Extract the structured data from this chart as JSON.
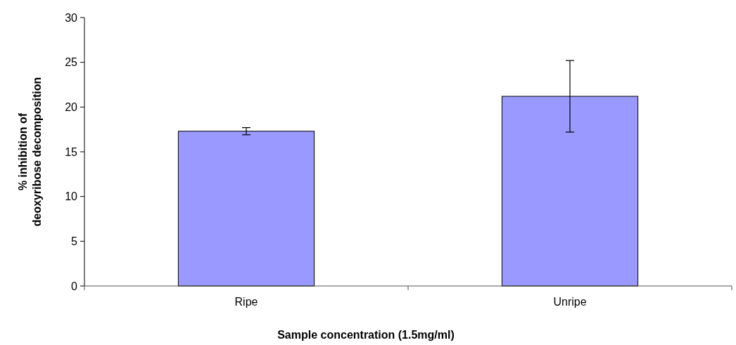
{
  "chart_data": {
    "type": "bar",
    "xlabel": "Sample concentration (1.5mg/ml)",
    "ylabel": "% inhibition of deoxyribose decomposition",
    "categories": [
      "Ripe",
      "Unripe"
    ],
    "values": [
      17.3,
      21.2
    ],
    "errors": [
      0.4,
      4
    ],
    "color": "#9999ff",
    "ylim": [
      0,
      30
    ],
    "yticks": [
      0,
      5,
      10,
      15,
      20,
      25,
      30
    ],
    "grid": false
  }
}
